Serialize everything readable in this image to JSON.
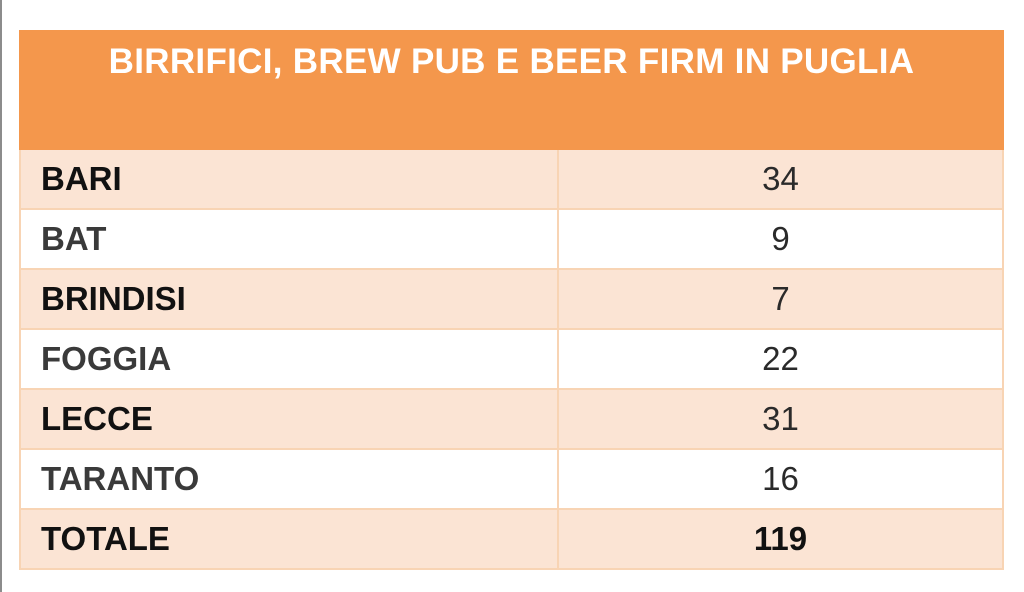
{
  "table": {
    "title": "BIRRIFICI, BREW PUB E BEER FIRM IN PUGLIA",
    "header_color": "#f4974c",
    "shaded_row_color": "#fbe4d4",
    "rows": [
      {
        "label": "BARI",
        "value": "34"
      },
      {
        "label": "BAT",
        "value": "9"
      },
      {
        "label": "BRINDISI",
        "value": "7"
      },
      {
        "label": "FOGGIA",
        "value": "22"
      },
      {
        "label": "LECCE",
        "value": "31"
      },
      {
        "label": "TARANTO",
        "value": "16"
      }
    ],
    "total": {
      "label": "TOTALE",
      "value": "119"
    }
  }
}
